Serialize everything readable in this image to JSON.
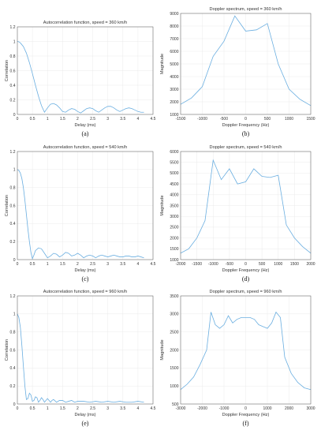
{
  "chart_data": [
    {
      "type": "line",
      "panel_label": "(a)",
      "title": "Autocorrelation function, speed = 360 km/h",
      "xlabel": "Delay (ms)",
      "ylabel": "Correlation",
      "xlim": [
        0,
        4.5
      ],
      "ylim": [
        0,
        1.2
      ],
      "xticks": [
        0,
        0.5,
        1,
        1.5,
        2,
        2.5,
        3,
        3.5,
        4,
        4.5
      ],
      "yticks": [
        0,
        0.2,
        0.4,
        0.6,
        0.8,
        1,
        1.2
      ],
      "grid": true,
      "x": [
        0,
        0.05,
        0.1,
        0.2,
        0.3,
        0.4,
        0.5,
        0.6,
        0.7,
        0.8,
        0.9,
        1.0,
        1.1,
        1.2,
        1.3,
        1.4,
        1.5,
        1.6,
        1.7,
        1.8,
        1.9,
        2.0,
        2.1,
        2.2,
        2.3,
        2.4,
        2.5,
        2.6,
        2.7,
        2.8,
        2.9,
        3.0,
        3.1,
        3.2,
        3.3,
        3.4,
        3.5,
        3.6,
        3.7,
        3.8,
        3.9,
        4.0,
        4.1,
        4.2
      ],
      "y": [
        1.0,
        0.995,
        0.98,
        0.93,
        0.84,
        0.71,
        0.56,
        0.4,
        0.25,
        0.12,
        0.03,
        0.09,
        0.14,
        0.15,
        0.13,
        0.09,
        0.04,
        0.03,
        0.06,
        0.08,
        0.07,
        0.04,
        0.02,
        0.05,
        0.08,
        0.09,
        0.08,
        0.05,
        0.03,
        0.06,
        0.09,
        0.11,
        0.11,
        0.09,
        0.06,
        0.04,
        0.06,
        0.08,
        0.09,
        0.08,
        0.06,
        0.04,
        0.03,
        0.03
      ]
    },
    {
      "type": "line",
      "panel_label": "(b)",
      "title": "Doppler spectrum, speed = 360 km/h",
      "xlabel": "Doppler Frequency (Hz)",
      "ylabel": "Magnitude",
      "xlim": [
        -1500,
        1500
      ],
      "ylim": [
        1000,
        9000
      ],
      "xticks": [
        -1500,
        -1000,
        -500,
        0,
        500,
        1000,
        1500
      ],
      "yticks": [
        1000,
        2000,
        3000,
        4000,
        5000,
        6000,
        7000,
        8000,
        9000
      ],
      "grid": true,
      "x": [
        -1500,
        -1250,
        -1000,
        -750,
        -500,
        -250,
        0,
        250,
        500,
        750,
        1000,
        1250,
        1500
      ],
      "y": [
        1800,
        2300,
        3200,
        5600,
        6800,
        8800,
        7600,
        7700,
        8200,
        5000,
        3000,
        2200,
        1700
      ]
    },
    {
      "type": "line",
      "panel_label": "(c)",
      "title": "Autocorrelation function, speed = 540 km/h",
      "xlabel": "Delay (ms)",
      "ylabel": "Correlation",
      "xlim": [
        0,
        4.5
      ],
      "ylim": [
        0,
        1.2
      ],
      "xticks": [
        0,
        0.5,
        1,
        1.5,
        2,
        2.5,
        3,
        3.5,
        4,
        4.5
      ],
      "yticks": [
        0,
        0.2,
        0.4,
        0.6,
        0.8,
        1,
        1.2
      ],
      "grid": true,
      "x": [
        0,
        0.05,
        0.1,
        0.15,
        0.2,
        0.25,
        0.3,
        0.35,
        0.4,
        0.45,
        0.5,
        0.55,
        0.6,
        0.7,
        0.8,
        0.9,
        1.0,
        1.1,
        1.2,
        1.3,
        1.4,
        1.5,
        1.6,
        1.7,
        1.8,
        1.9,
        2.0,
        2.1,
        2.2,
        2.3,
        2.4,
        2.5,
        2.6,
        2.7,
        2.8,
        2.9,
        3.0,
        3.1,
        3.2,
        3.3,
        3.4,
        3.5,
        3.6,
        3.7,
        3.8,
        3.9,
        4.0,
        4.1,
        4.2
      ],
      "y": [
        1.0,
        0.99,
        0.96,
        0.9,
        0.8,
        0.66,
        0.5,
        0.34,
        0.2,
        0.08,
        0.01,
        0.05,
        0.1,
        0.13,
        0.12,
        0.07,
        0.02,
        0.04,
        0.07,
        0.06,
        0.03,
        0.05,
        0.08,
        0.07,
        0.04,
        0.05,
        0.07,
        0.05,
        0.02,
        0.04,
        0.05,
        0.04,
        0.02,
        0.04,
        0.05,
        0.04,
        0.03,
        0.04,
        0.05,
        0.04,
        0.03,
        0.03,
        0.04,
        0.04,
        0.03,
        0.03,
        0.04,
        0.03,
        0.02
      ]
    },
    {
      "type": "line",
      "panel_label": "(d)",
      "title": "Doppler spectrum, speed = 540 km/h",
      "xlabel": "Doppler Frequency (Hz)",
      "ylabel": "Magnitude",
      "xlim": [
        -2000,
        2000
      ],
      "ylim": [
        1000,
        6000
      ],
      "xticks": [
        -2000,
        -1500,
        -1000,
        -500,
        0,
        500,
        1000,
        1500,
        2000
      ],
      "yticks": [
        1000,
        1500,
        2000,
        2500,
        3000,
        3500,
        4000,
        4500,
        5000,
        5500,
        6000
      ],
      "grid": true,
      "x": [
        -2000,
        -1750,
        -1500,
        -1250,
        -1000,
        -750,
        -500,
        -250,
        0,
        250,
        500,
        750,
        1000,
        1250,
        1500,
        1750,
        2000
      ],
      "y": [
        1300,
        1500,
        2000,
        2800,
        5600,
        4700,
        5200,
        4500,
        4600,
        5200,
        4850,
        4800,
        4900,
        2600,
        2000,
        1600,
        1300
      ]
    },
    {
      "type": "line",
      "panel_label": "(e)",
      "title": "Autocorrelation function, speed = 960 km/h",
      "xlabel": "Delay (ms)",
      "ylabel": "Correlation",
      "xlim": [
        0,
        4.5
      ],
      "ylim": [
        0,
        1.2
      ],
      "xticks": [
        0,
        0.5,
        1,
        1.5,
        2,
        2.5,
        3,
        3.5,
        4,
        4.5
      ],
      "yticks": [
        0,
        0.2,
        0.4,
        0.6,
        0.8,
        1,
        1.2
      ],
      "grid": true,
      "x": [
        0,
        0.05,
        0.1,
        0.15,
        0.2,
        0.25,
        0.3,
        0.35,
        0.4,
        0.45,
        0.5,
        0.55,
        0.6,
        0.65,
        0.7,
        0.75,
        0.8,
        0.85,
        0.9,
        0.95,
        1.0,
        1.05,
        1.1,
        1.15,
        1.2,
        1.3,
        1.4,
        1.5,
        1.6,
        1.7,
        1.8,
        1.9,
        2.0,
        2.2,
        2.4,
        2.6,
        2.8,
        3.0,
        3.2,
        3.4,
        3.6,
        3.8,
        4.0,
        4.2
      ],
      "y": [
        1.0,
        0.96,
        0.85,
        0.65,
        0.42,
        0.2,
        0.05,
        0.06,
        0.12,
        0.1,
        0.03,
        0.04,
        0.08,
        0.07,
        0.02,
        0.04,
        0.07,
        0.05,
        0.02,
        0.04,
        0.06,
        0.04,
        0.02,
        0.04,
        0.05,
        0.02,
        0.04,
        0.04,
        0.02,
        0.03,
        0.04,
        0.02,
        0.03,
        0.03,
        0.02,
        0.03,
        0.02,
        0.03,
        0.02,
        0.03,
        0.02,
        0.02,
        0.03,
        0.02
      ]
    },
    {
      "type": "line",
      "panel_label": "(f)",
      "title": "Doppler spectrum, speed = 960 km/h",
      "xlabel": "Doppler Frequency (Hz)",
      "ylabel": "Magnitude",
      "xlim": [
        -3000,
        3000
      ],
      "ylim": [
        500,
        3500
      ],
      "xticks": [
        -3000,
        -2000,
        -1000,
        0,
        1000,
        2000,
        3000
      ],
      "yticks": [
        500,
        1000,
        1500,
        2000,
        2500,
        3000,
        3500
      ],
      "grid": true,
      "x": [
        -3000,
        -2700,
        -2400,
        -2100,
        -1800,
        -1600,
        -1400,
        -1200,
        -1000,
        -800,
        -600,
        -400,
        -200,
        0,
        200,
        400,
        600,
        800,
        1000,
        1200,
        1400,
        1600,
        1800,
        2100,
        2400,
        2700,
        3000
      ],
      "y": [
        900,
        1050,
        1250,
        1600,
        2000,
        3050,
        2700,
        2600,
        2700,
        2950,
        2750,
        2850,
        2900,
        2900,
        2900,
        2850,
        2700,
        2650,
        2600,
        2750,
        3050,
        2900,
        1800,
        1350,
        1100,
        950,
        900
      ]
    }
  ]
}
